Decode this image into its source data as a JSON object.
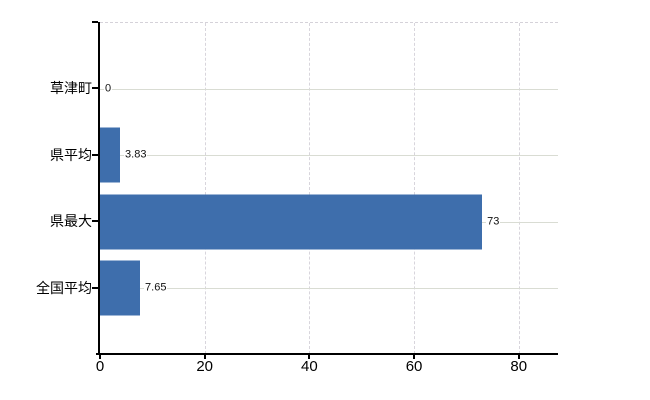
{
  "chart_data": {
    "type": "bar",
    "orientation": "horizontal",
    "title": "",
    "xlabel": "",
    "ylabel": "",
    "categories": [
      "草津町",
      "県平均",
      "県最大",
      "全国平均"
    ],
    "values": [
      0,
      3.83,
      73,
      7.65
    ],
    "value_labels": [
      "0",
      "3.83",
      "73",
      "7.65"
    ],
    "x_ticks": [
      0,
      20,
      40,
      60,
      80
    ],
    "x_tick_labels": [
      "0",
      "20",
      "40",
      "60",
      "80"
    ],
    "xlim": [
      0,
      87.5
    ],
    "legend_position": "none",
    "grid": {
      "horizontal_solid": true,
      "vertical_dashed": true,
      "plot_top_border": "dashed"
    },
    "colors": {
      "bar": "#3e6eac",
      "axis": "#000000",
      "grid_horizontal": "#d9dcd3",
      "grid_vertical": "#d8d5dc",
      "text": "#000000",
      "background": "#ffffff"
    }
  }
}
